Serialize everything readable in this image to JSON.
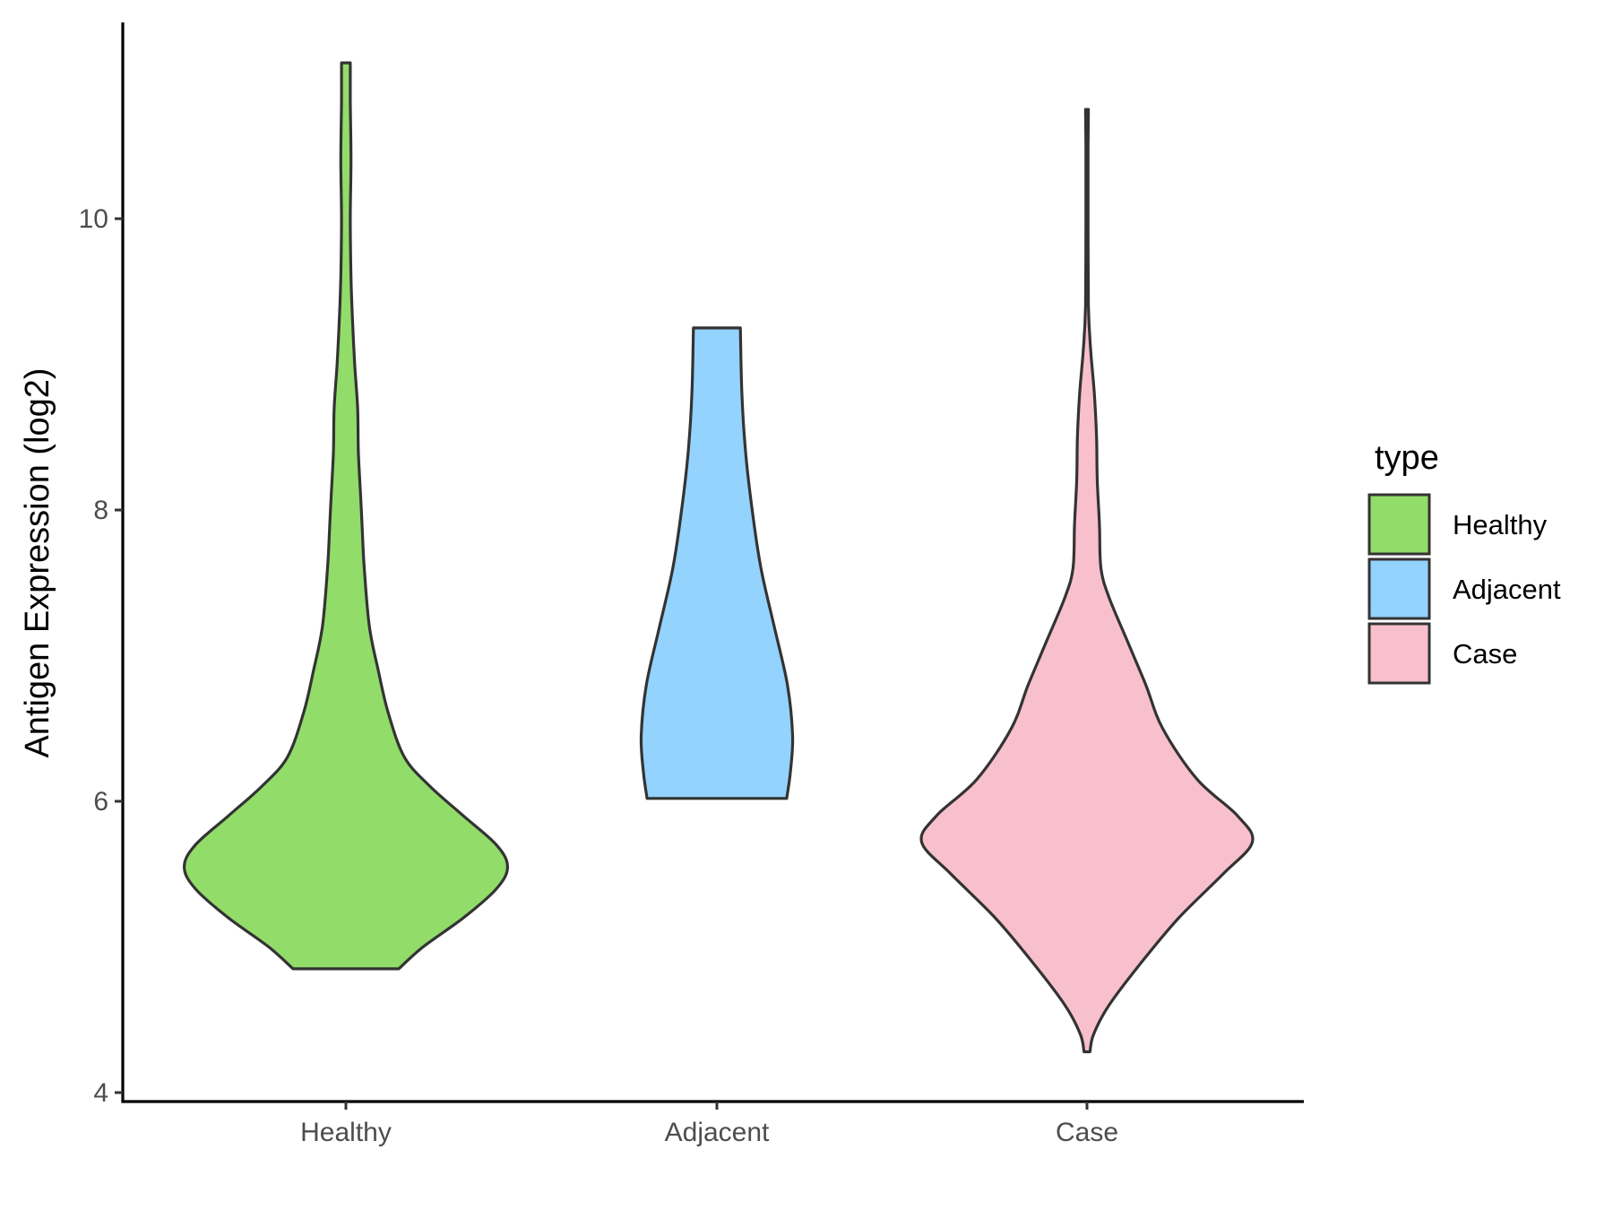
{
  "chart_data": {
    "type": "violin",
    "ylabel": "Antigen Expression (log2)",
    "xlabel": "",
    "ylim": [
      3.95,
      11.5
    ],
    "yticks": [
      4,
      6,
      8,
      10
    ],
    "categories": [
      "Healthy",
      "Adjacent",
      "Case"
    ],
    "legend": {
      "title": "type",
      "placement": "right"
    },
    "series": [
      {
        "name": "Healthy",
        "color": "#92dc6a",
        "min": 4.85,
        "max": 11.07,
        "density": [
          [
            4.85,
            0.72
          ],
          [
            5.0,
            1.05
          ],
          [
            5.2,
            1.6
          ],
          [
            5.4,
            2.05
          ],
          [
            5.55,
            2.2
          ],
          [
            5.7,
            2.05
          ],
          [
            5.9,
            1.6
          ],
          [
            6.1,
            1.15
          ],
          [
            6.3,
            0.8
          ],
          [
            6.6,
            0.58
          ],
          [
            6.9,
            0.44
          ],
          [
            7.2,
            0.32
          ],
          [
            7.6,
            0.25
          ],
          [
            7.9,
            0.22
          ],
          [
            8.1,
            0.2
          ],
          [
            8.4,
            0.17
          ],
          [
            8.7,
            0.16
          ],
          [
            9.0,
            0.12
          ],
          [
            9.3,
            0.09
          ],
          [
            9.6,
            0.07
          ],
          [
            10.0,
            0.06
          ],
          [
            10.4,
            0.07
          ],
          [
            10.8,
            0.06
          ],
          [
            11.07,
            0.06
          ]
        ]
      },
      {
        "name": "Adjacent",
        "color": "#93d3fe",
        "min": 6.02,
        "max": 9.25,
        "density": [
          [
            6.02,
            0.95
          ],
          [
            6.2,
            1.0
          ],
          [
            6.45,
            1.03
          ],
          [
            6.8,
            0.96
          ],
          [
            7.2,
            0.78
          ],
          [
            7.6,
            0.6
          ],
          [
            8.0,
            0.48
          ],
          [
            8.4,
            0.39
          ],
          [
            8.8,
            0.34
          ],
          [
            9.25,
            0.32
          ]
        ]
      },
      {
        "name": "Case",
        "color": "#f8c0cc",
        "min": 4.28,
        "max": 10.75,
        "density": [
          [
            4.28,
            0.04
          ],
          [
            4.4,
            0.09
          ],
          [
            4.6,
            0.3
          ],
          [
            4.9,
            0.75
          ],
          [
            5.2,
            1.25
          ],
          [
            5.5,
            1.85
          ],
          [
            5.72,
            2.25
          ],
          [
            5.9,
            2.05
          ],
          [
            6.15,
            1.5
          ],
          [
            6.5,
            1.03
          ],
          [
            6.8,
            0.8
          ],
          [
            7.1,
            0.55
          ],
          [
            7.4,
            0.3
          ],
          [
            7.6,
            0.19
          ],
          [
            7.9,
            0.17
          ],
          [
            8.2,
            0.14
          ],
          [
            8.5,
            0.13
          ],
          [
            8.8,
            0.1
          ],
          [
            9.1,
            0.05
          ],
          [
            9.4,
            0.02
          ],
          [
            10.0,
            0.015
          ],
          [
            10.5,
            0.015
          ],
          [
            10.75,
            0.02
          ]
        ]
      }
    ]
  }
}
